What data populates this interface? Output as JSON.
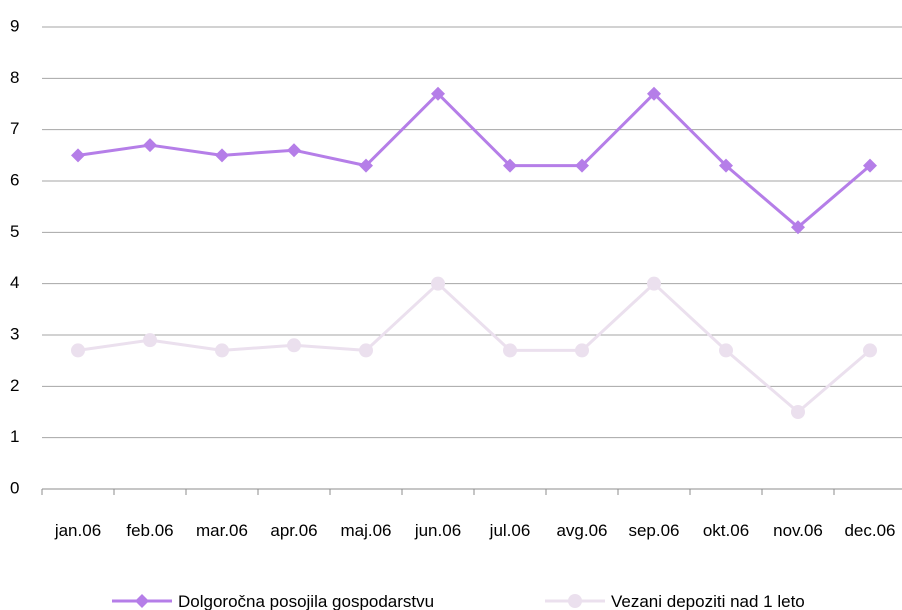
{
  "chart_data": {
    "type": "line",
    "categories": [
      "jan.06",
      "feb.06",
      "mar.06",
      "apr.06",
      "maj.06",
      "jun.06",
      "jul.06",
      "avg.06",
      "sep.06",
      "okt.06",
      "nov.06",
      "dec.06"
    ],
    "series": [
      {
        "name": "Dolgoročna posojila gospodarstvu",
        "color": "#b57ee8",
        "marker": "diamond",
        "values": [
          6.5,
          6.7,
          6.5,
          6.6,
          6.3,
          7.7,
          6.3,
          6.3,
          7.7,
          6.3,
          5.1,
          6.3
        ]
      },
      {
        "name": "Vezani depoziti nad 1 leto",
        "color": "#ebe0ee",
        "marker": "circle",
        "values": [
          2.7,
          2.9,
          2.7,
          2.8,
          2.7,
          4.0,
          2.7,
          2.7,
          4.0,
          2.7,
          1.5,
          2.7
        ]
      }
    ],
    "yticks": [
      "0",
      "1",
      "2",
      "3",
      "4",
      "5",
      "6",
      "7",
      "8",
      "9"
    ],
    "ylim": [
      0,
      9
    ],
    "grid": true,
    "legend_position": "bottom",
    "title": "",
    "xlabel": "",
    "ylabel": ""
  }
}
